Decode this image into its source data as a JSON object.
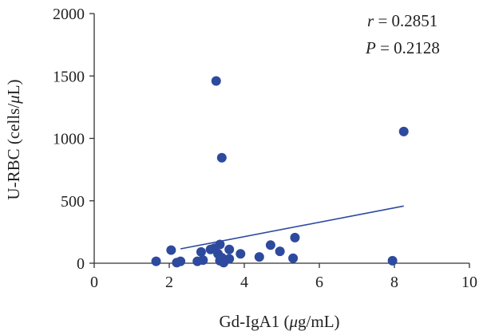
{
  "chart_data": {
    "type": "scatter",
    "xlabel_prefix": "Gd-IgA1 (",
    "xlabel_unit_mu": "μ",
    "xlabel_suffix": "g/mL)",
    "ylabel_prefix": "U-RBC (cells/",
    "ylabel_unit_mu": "μ",
    "ylabel_suffix": "L)",
    "xlim": [
      0,
      10
    ],
    "ylim": [
      0,
      2000
    ],
    "x_ticks": [
      0,
      2,
      4,
      6,
      8,
      10
    ],
    "y_ticks": [
      0,
      500,
      1000,
      1500,
      2000
    ],
    "grid": false,
    "annotations": {
      "r_symbol": "r",
      "r_text": " = 0.2851",
      "p_symbol": "P",
      "p_text": " = 0.2128"
    },
    "point_color": "#2e4a9e",
    "line_color": "#2e4a9e",
    "points": [
      {
        "x": 1.65,
        "y": 15
      },
      {
        "x": 2.05,
        "y": 105
      },
      {
        "x": 2.2,
        "y": 5
      },
      {
        "x": 2.3,
        "y": 15
      },
      {
        "x": 2.75,
        "y": 15
      },
      {
        "x": 2.85,
        "y": 90
      },
      {
        "x": 2.9,
        "y": 25
      },
      {
        "x": 3.1,
        "y": 110
      },
      {
        "x": 3.2,
        "y": 120
      },
      {
        "x": 3.25,
        "y": 1460
      },
      {
        "x": 3.3,
        "y": 75
      },
      {
        "x": 3.35,
        "y": 150
      },
      {
        "x": 3.35,
        "y": 20
      },
      {
        "x": 3.4,
        "y": 45
      },
      {
        "x": 3.4,
        "y": 845
      },
      {
        "x": 3.45,
        "y": 5
      },
      {
        "x": 3.6,
        "y": 110
      },
      {
        "x": 3.6,
        "y": 35
      },
      {
        "x": 3.9,
        "y": 75
      },
      {
        "x": 4.4,
        "y": 50
      },
      {
        "x": 4.7,
        "y": 145
      },
      {
        "x": 4.95,
        "y": 95
      },
      {
        "x": 5.3,
        "y": 40
      },
      {
        "x": 5.35,
        "y": 205
      },
      {
        "x": 7.95,
        "y": 20
      },
      {
        "x": 8.25,
        "y": 1055
      }
    ],
    "trendline": {
      "x": [
        2.3,
        8.25
      ],
      "y": [
        115,
        458
      ]
    }
  }
}
